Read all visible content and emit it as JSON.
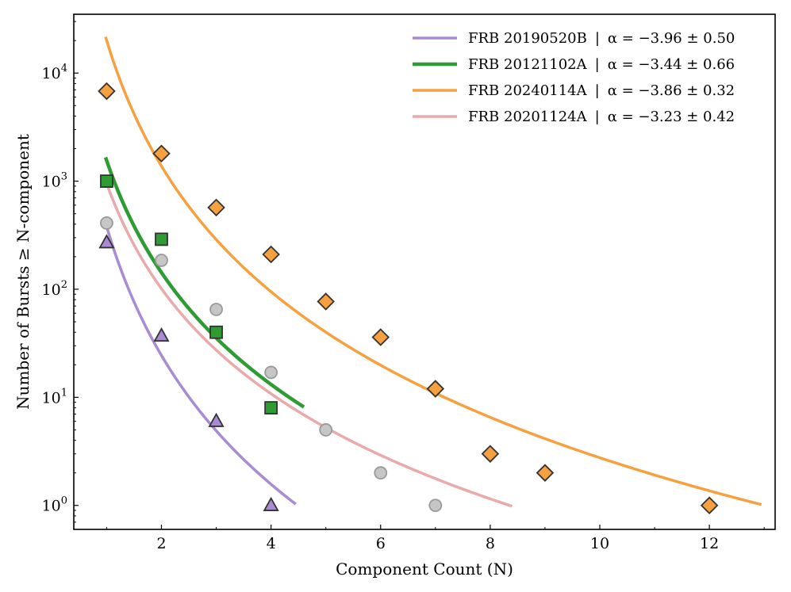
{
  "chart_data": {
    "type": "scatter",
    "xlabel": "Component Count (N)",
    "ylabel": "Number of Bursts ≥ N-component",
    "xlim": [
      0.4,
      13.2
    ],
    "ylim": [
      0.6,
      35000
    ],
    "yscale": "log",
    "grid": false,
    "legend_position": "top-right",
    "x_ticks": [
      2,
      4,
      6,
      8,
      10,
      12
    ],
    "x_tick_labels": [
      "2",
      "4",
      "6",
      "8",
      "10",
      "12"
    ],
    "y_ticks": [
      1,
      10,
      100,
      1000,
      10000
    ],
    "y_tick_labels": [
      "10^0",
      "10^1",
      "10^2",
      "10^3",
      "10^4"
    ],
    "series": [
      {
        "name": "FRB 20190520B",
        "alpha": "α = −3.96 ± 0.50",
        "color": "#a88bd0",
        "marker": "triangle",
        "points": [
          [
            1,
            270
          ],
          [
            2,
            37
          ],
          [
            3,
            6
          ],
          [
            4,
            1
          ]
        ],
        "fit_amplitude": 380,
        "fit_exponent": -3.96,
        "fit_range": [
          1,
          4.45
        ]
      },
      {
        "name": "FRB 20121102A",
        "alpha": "α = −3.44 ± 0.66",
        "color": "#2e9c32",
        "marker": "square",
        "points": [
          [
            1,
            1000
          ],
          [
            2,
            290
          ],
          [
            3,
            40
          ],
          [
            4,
            8
          ]
        ],
        "fit_amplitude": 1550,
        "fit_exponent": -3.44,
        "fit_range": [
          0.98,
          4.6
        ]
      },
      {
        "name": "FRB 20240114A",
        "alpha": "α = −3.86 ± 0.32",
        "color": "#f7a040",
        "marker": "diamond",
        "points": [
          [
            1,
            6800
          ],
          [
            2,
            1800
          ],
          [
            3,
            570
          ],
          [
            4,
            210
          ],
          [
            5,
            77
          ],
          [
            6,
            36
          ],
          [
            7,
            12
          ],
          [
            8,
            3
          ],
          [
            9,
            2
          ],
          [
            12,
            1
          ]
        ],
        "fit_amplitude": 20000,
        "fit_exponent": -3.86,
        "fit_range": [
          0.98,
          12.95
        ]
      },
      {
        "name": "FRB 20201124A",
        "alpha": "α = −3.23 ± 0.42",
        "color": "#eaa9ab",
        "marker": "circle",
        "points": [
          [
            1,
            410
          ],
          [
            2,
            185
          ],
          [
            3,
            65
          ],
          [
            4,
            17
          ],
          [
            5,
            5
          ],
          [
            6,
            2
          ],
          [
            7,
            1
          ]
        ],
        "fit_amplitude": 950,
        "fit_exponent": -3.23,
        "fit_range": [
          0.98,
          8.4
        ]
      }
    ]
  },
  "colors": {
    "axis": "#000000",
    "marker_edge": "#333333",
    "circle_fill": "#c6c6c6"
  }
}
